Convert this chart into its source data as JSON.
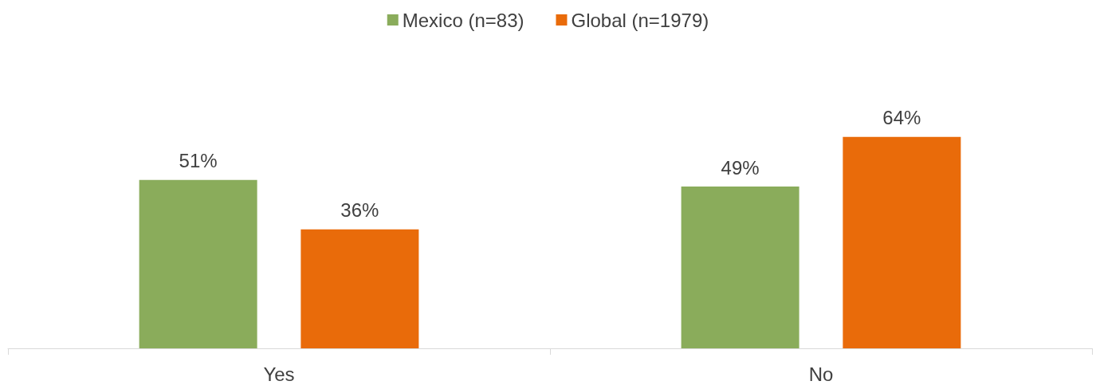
{
  "chart_data": {
    "type": "bar",
    "categories": [
      "Yes",
      "No"
    ],
    "series": [
      {
        "name": "Mexico (n=83)",
        "color": "#8aac5b",
        "values": [
          51,
          49
        ],
        "value_labels": [
          "51%",
          "49%"
        ]
      },
      {
        "name": "Global (n=1979)",
        "color": "#e96b0a",
        "values": [
          36,
          64
        ],
        "value_labels": [
          "36%",
          "64%"
        ]
      }
    ],
    "legend": "top",
    "grid": false
  }
}
